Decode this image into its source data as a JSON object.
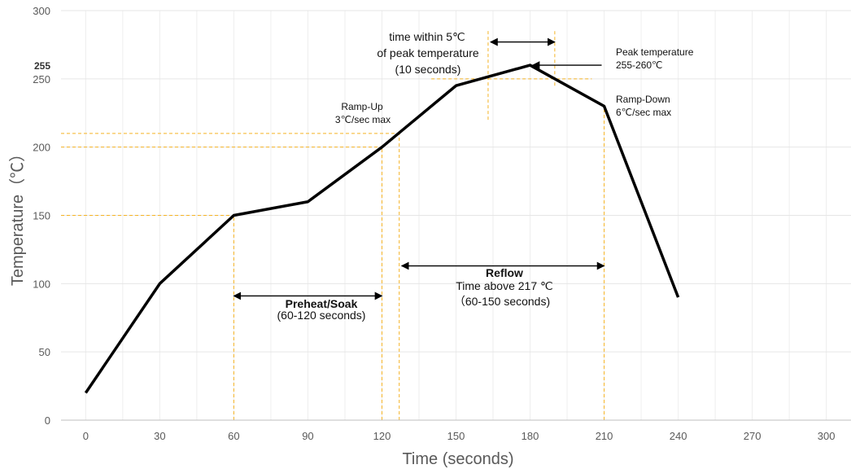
{
  "chart_data": {
    "type": "line",
    "xlabel": "Time (seconds)",
    "ylabel": "Temperature（℃）",
    "xlim": [
      -10,
      310
    ],
    "ylim": [
      0,
      300
    ],
    "x_ticks": [
      0,
      30,
      60,
      90,
      120,
      150,
      180,
      210,
      240,
      270,
      300
    ],
    "y_ticks": [
      0,
      50,
      100,
      150,
      200,
      250,
      300
    ],
    "extra_y_tick": "255",
    "grid": true,
    "series": [
      {
        "color": "#000000",
        "points": [
          [
            0,
            20
          ],
          [
            30,
            100
          ],
          [
            60,
            150
          ],
          [
            90,
            160
          ],
          [
            120,
            200
          ],
          [
            150,
            245
          ],
          [
            180,
            260
          ],
          [
            210,
            230
          ],
          [
            240,
            90
          ]
        ]
      }
    ],
    "reference_lines_color": "#f5b324",
    "annotations": {
      "time_within": [
        "time within 5℃",
        "of peak temperature",
        "(10 seconds)"
      ],
      "peak_temperature": [
        "Peak temperature",
        "255-260℃"
      ],
      "ramp_up": [
        "Ramp-Up",
        "3℃/sec max"
      ],
      "ramp_down": [
        "Ramp-Down",
        "6℃/sec max"
      ],
      "preheat": [
        "Preheat/Soak",
        "(60-120 seconds)"
      ],
      "reflow": [
        "Reflow",
        "Time above 217 ℃",
        "（60-150 seconds)"
      ]
    }
  }
}
